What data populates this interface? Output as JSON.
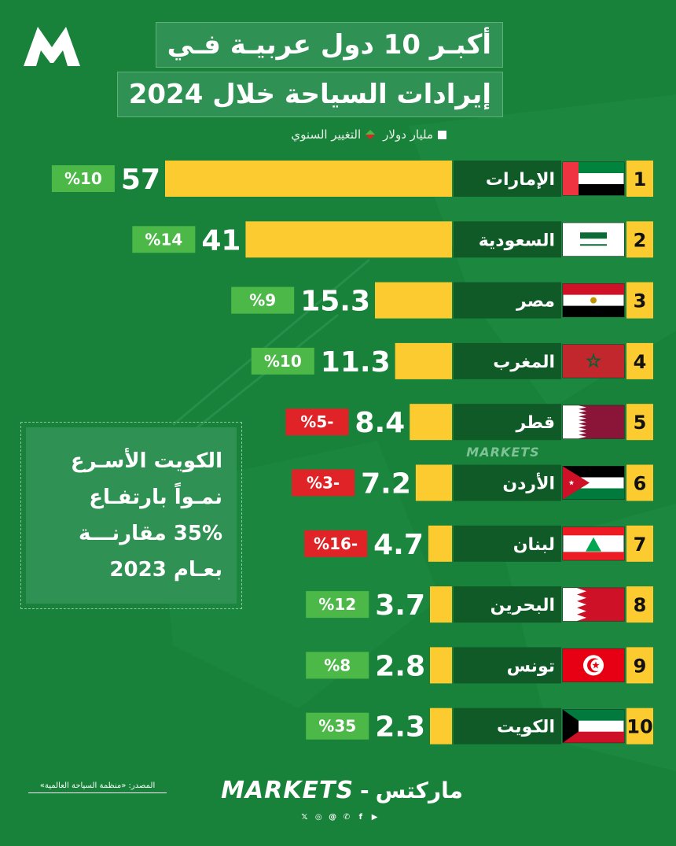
{
  "title_line1": "أكبـر 10 دول عربيـة فـي",
  "title_line2": "إيرادات السياحة خلال 2024",
  "legend": {
    "value_label": "مليار دولار",
    "change_label": "التغيير السنوي"
  },
  "watermark": "MARKETS",
  "note": {
    "lines": [
      "الكويت الأسـرع",
      "نمـواً بارتفـاع",
      "35% مقارنـــة",
      "بعـام 2023"
    ]
  },
  "source": "المصدر: «منظمة السياحة العالمية»",
  "brand": {
    "en": "MARKETS",
    "separator": "-",
    "ar": "ماركتس"
  },
  "colors": {
    "background": "#18823a",
    "bar": "#fccb2f",
    "positive_badge": "#4cb848",
    "negative_badge": "#e02326",
    "name_box": "#0f5a27"
  },
  "chart_data": {
    "type": "bar",
    "orientation": "horizontal",
    "unit": "مليار دولار",
    "categories": [
      "الإمارات",
      "السعودية",
      "مصر",
      "المغرب",
      "قطر",
      "الأردن",
      "لبنان",
      "البحرين",
      "تونس",
      "الكويت"
    ],
    "ranks": [
      "1",
      "2",
      "3",
      "4",
      "5",
      "6",
      "7",
      "8",
      "9",
      "10"
    ],
    "values": [
      57,
      41,
      15.3,
      11.3,
      8.4,
      7.2,
      4.7,
      3.7,
      2.8,
      2.3
    ],
    "value_labels": [
      "57",
      "41",
      "15.3",
      "11.3",
      "8.4",
      "7.2",
      "4.7",
      "3.7",
      "2.8",
      "2.3"
    ],
    "changes": [
      10,
      14,
      9,
      10,
      -5,
      -3,
      -16,
      12,
      8,
      35
    ],
    "change_labels": [
      "%10",
      "%14",
      "%9",
      "%10",
      "%5-",
      "%3-",
      "%16-",
      "%12",
      "%8",
      "%35"
    ],
    "flags": [
      "uae-flag",
      "saudi-flag",
      "egypt-flag",
      "morocco-flag",
      "qatar-flag",
      "jordan-flag",
      "lebanon-flag",
      "bahrain-flag",
      "tunisia-flag",
      "kuwait-flag"
    ],
    "legend_position": "top"
  }
}
